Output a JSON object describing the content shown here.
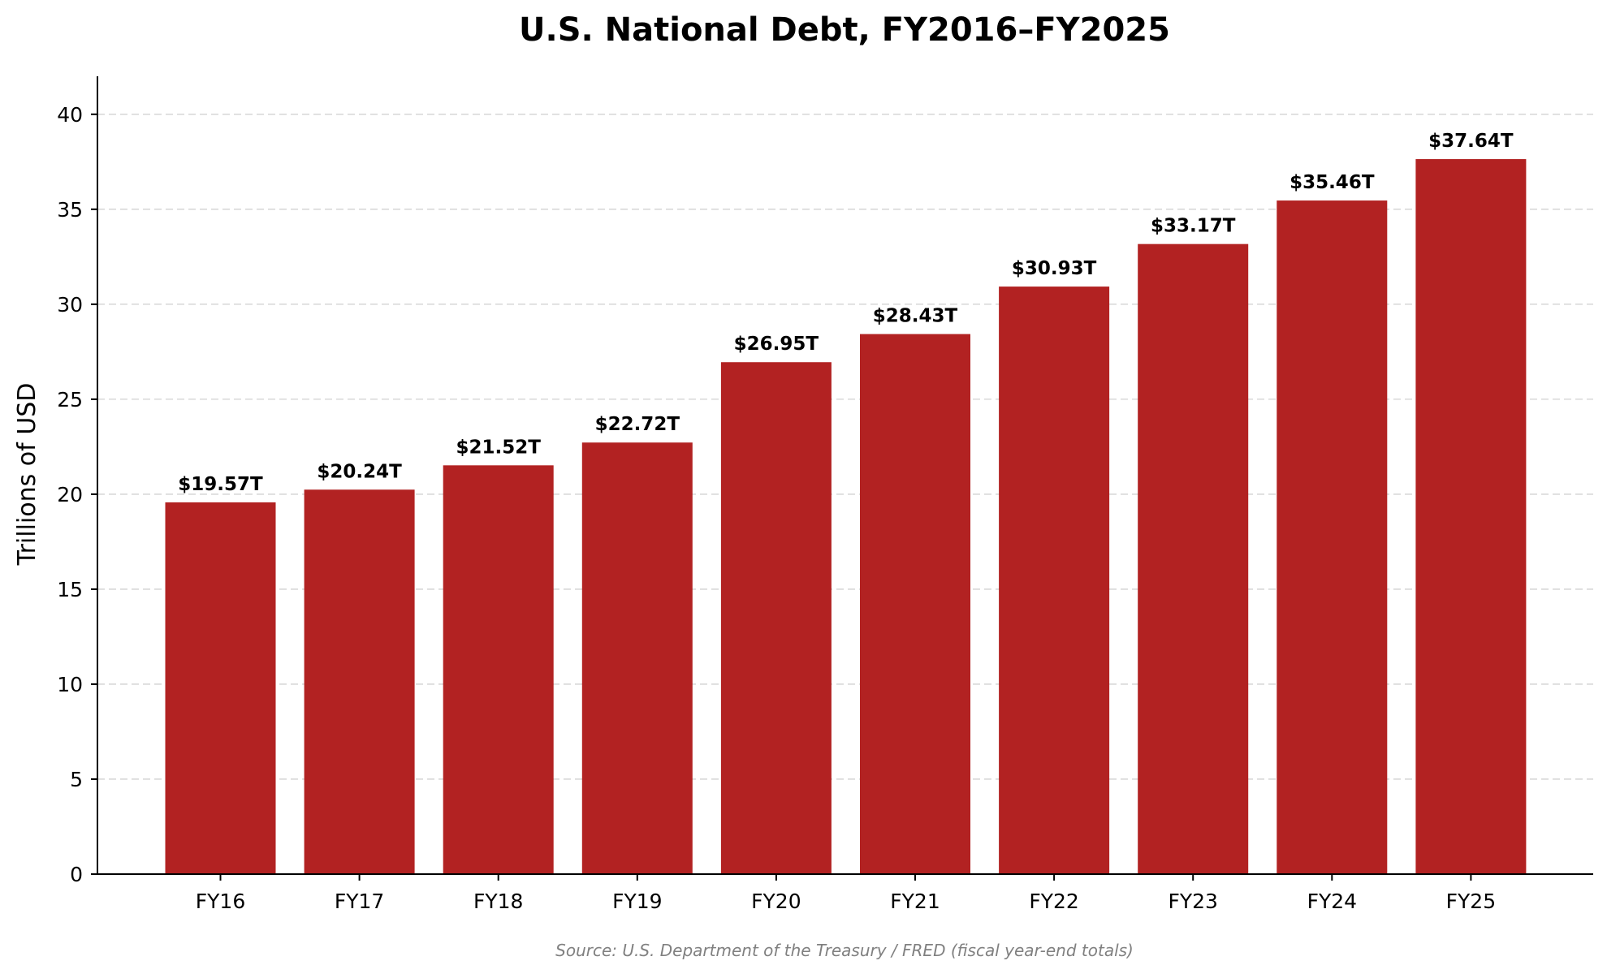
{
  "chart_data": {
    "type": "bar",
    "title": "U.S. National Debt, FY2016–FY2025",
    "xlabel": "",
    "ylabel": "Trillions of USD",
    "categories": [
      "FY16",
      "FY17",
      "FY18",
      "FY19",
      "FY20",
      "FY21",
      "FY22",
      "FY23",
      "FY24",
      "FY25"
    ],
    "values": [
      19.57,
      20.24,
      21.52,
      22.72,
      26.95,
      28.43,
      30.93,
      33.17,
      35.46,
      37.64
    ],
    "data_labels": [
      "$19.57T",
      "$20.24T",
      "$21.52T",
      "$22.72T",
      "$26.95T",
      "$28.43T",
      "$30.93T",
      "$33.17T",
      "$35.46T",
      "$37.64T"
    ],
    "ylim": [
      0,
      42
    ],
    "yticks": [
      0,
      5,
      10,
      15,
      20,
      25,
      30,
      35,
      40
    ],
    "grid": true,
    "grid_axis": "y",
    "bar_color": "#b22222",
    "source": "Source: U.S. Department of the Treasury / FRED (fiscal year-end totals)"
  }
}
